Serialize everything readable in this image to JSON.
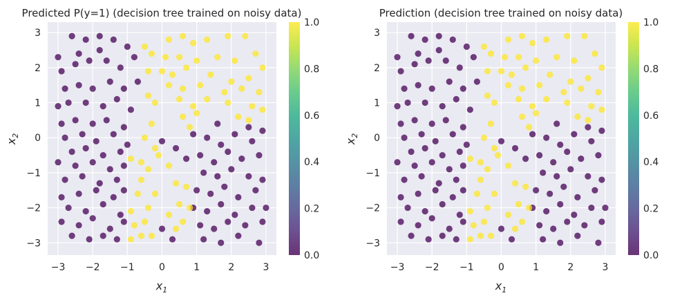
{
  "chart_data": [
    {
      "type": "scatter",
      "title": "Predicted P(y=1) (decision tree trained on noisy data)",
      "xlabel": "x",
      "xlabel_sub": "1",
      "ylabel": "x",
      "ylabel_sub": "2",
      "xlim": [
        -3.3,
        3.3
      ],
      "ylim": [
        -3.35,
        3.3
      ],
      "xticks": [
        -3,
        -2,
        -1,
        0,
        1,
        2,
        3
      ],
      "yticks": [
        -3,
        -2,
        -1,
        0,
        1,
        2,
        3
      ],
      "xtick_labels": [
        "−3",
        "−2",
        "−1",
        "0",
        "1",
        "2",
        "3"
      ],
      "ytick_labels": [
        "−3",
        "−2",
        "−1",
        "0",
        "1",
        "2",
        "3"
      ],
      "colorbar": {
        "min": 0.0,
        "max": 1.0,
        "ticks": [
          0.0,
          0.2,
          0.4,
          0.6,
          0.8,
          1.0
        ],
        "tick_labels": [
          "0.0",
          "0.2",
          "0.4",
          "0.6",
          "0.8",
          "1.0"
        ],
        "colormap": "viridis"
      },
      "class_1_points": [
        [
          -0.5,
          2.6
        ],
        [
          -0.3,
          2.4
        ],
        [
          0.2,
          2.8
        ],
        [
          0.6,
          2.9
        ],
        [
          0.9,
          2.7
        ],
        [
          1.3,
          2.8
        ],
        [
          1.9,
          2.9
        ],
        [
          2.4,
          2.9
        ],
        [
          0.1,
          2.3
        ],
        [
          0.5,
          2.3
        ],
        [
          1.0,
          2.2
        ],
        [
          1.6,
          2.3
        ],
        [
          2.1,
          2.2
        ],
        [
          2.7,
          2.4
        ],
        [
          -0.4,
          1.9
        ],
        [
          0.0,
          1.9
        ],
        [
          0.3,
          1.8
        ],
        [
          0.7,
          2.0
        ],
        [
          1.4,
          1.8
        ],
        [
          2.0,
          1.6
        ],
        [
          2.5,
          1.7
        ],
        [
          2.9,
          2.0
        ],
        [
          0.2,
          1.5
        ],
        [
          0.6,
          1.4
        ],
        [
          1.1,
          1.5
        ],
        [
          1.8,
          1.3
        ],
        [
          2.3,
          1.4
        ],
        [
          2.8,
          1.3
        ],
        [
          -0.4,
          1.2
        ],
        [
          -0.2,
          1.0
        ],
        [
          0.5,
          1.1
        ],
        [
          0.9,
          0.9
        ],
        [
          1.3,
          1.1
        ],
        [
          1.9,
          1.0
        ],
        [
          2.6,
          0.9
        ],
        [
          0.6,
          0.6
        ],
        [
          0.8,
          0.3
        ],
        [
          1.0,
          0.7
        ],
        [
          2.2,
          0.6
        ],
        [
          2.9,
          0.8
        ],
        [
          2.5,
          0.5
        ],
        [
          -0.3,
          0.4
        ],
        [
          -0.5,
          0.0
        ],
        [
          -0.2,
          -0.3
        ],
        [
          -0.6,
          -0.7
        ],
        [
          -0.9,
          -0.6
        ],
        [
          -0.4,
          -0.9
        ],
        [
          -0.1,
          -0.5
        ],
        [
          -0.6,
          -1.2
        ],
        [
          -0.2,
          -1.6
        ],
        [
          -0.7,
          -1.6
        ],
        [
          -0.4,
          -2.0
        ],
        [
          -0.9,
          -2.1
        ],
        [
          -0.5,
          -2.4
        ],
        [
          -0.8,
          -2.5
        ],
        [
          -0.3,
          -2.8
        ],
        [
          -0.6,
          -2.8
        ],
        [
          -0.9,
          -2.9
        ],
        [
          0.2,
          -0.8
        ],
        [
          0.4,
          -1.3
        ],
        [
          0.7,
          -1.4
        ],
        [
          0.5,
          -1.9
        ],
        [
          0.2,
          -2.2
        ],
        [
          0.4,
          -2.6
        ],
        [
          0.8,
          -2.0
        ],
        [
          0.6,
          -2.4
        ]
      ],
      "class_0_points": [
        [
          -3.0,
          2.3
        ],
        [
          -2.6,
          2.9
        ],
        [
          -2.2,
          2.8
        ],
        [
          -1.8,
          2.9
        ],
        [
          -1.4,
          2.8
        ],
        [
          -1.0,
          2.6
        ],
        [
          -2.9,
          1.9
        ],
        [
          -2.5,
          2.1
        ],
        [
          -2.1,
          2.2
        ],
        [
          -1.6,
          2.2
        ],
        [
          -1.2,
          2.0
        ],
        [
          -0.8,
          2.3
        ],
        [
          -2.8,
          1.4
        ],
        [
          -2.4,
          1.5
        ],
        [
          -2.0,
          1.4
        ],
        [
          -1.5,
          1.6
        ],
        [
          -1.1,
          1.4
        ],
        [
          -0.7,
          1.6
        ],
        [
          -3.0,
          0.9
        ],
        [
          -2.7,
          1.0
        ],
        [
          -2.2,
          1.0
        ],
        [
          -1.7,
          0.9
        ],
        [
          -1.3,
          1.1
        ],
        [
          -0.9,
          0.8
        ],
        [
          -2.9,
          0.4
        ],
        [
          -2.5,
          0.5
        ],
        [
          -2.0,
          0.4
        ],
        [
          -1.6,
          0.5
        ],
        [
          -1.1,
          0.3
        ],
        [
          -2.8,
          0.0
        ],
        [
          -2.3,
          0.1
        ],
        [
          -1.9,
          -0.1
        ],
        [
          -1.4,
          0.1
        ],
        [
          -1.0,
          -0.2
        ],
        [
          -2.6,
          -0.4
        ],
        [
          -2.2,
          -0.3
        ],
        [
          -1.7,
          -0.5
        ],
        [
          -1.2,
          -0.4
        ],
        [
          -3.0,
          -0.7
        ],
        [
          -2.5,
          -0.8
        ],
        [
          -2.0,
          -0.7
        ],
        [
          -1.5,
          -0.9
        ],
        [
          -1.1,
          -0.8
        ],
        [
          -2.8,
          -1.2
        ],
        [
          -2.3,
          -1.1
        ],
        [
          -1.8,
          -1.3
        ],
        [
          -1.3,
          -1.2
        ],
        [
          -2.9,
          -1.7
        ],
        [
          -2.4,
          -1.6
        ],
        [
          -1.9,
          -1.5
        ],
        [
          -1.4,
          -1.7
        ],
        [
          -1.1,
          -1.5
        ],
        [
          -2.7,
          -2.0
        ],
        [
          -2.2,
          -2.1
        ],
        [
          -1.7,
          -1.9
        ],
        [
          -1.2,
          -2.2
        ],
        [
          -2.9,
          -2.4
        ],
        [
          -2.4,
          -2.5
        ],
        [
          -2.0,
          -2.3
        ],
        [
          -1.5,
          -2.6
        ],
        [
          -1.1,
          -2.4
        ],
        [
          -2.6,
          -2.8
        ],
        [
          -2.1,
          -2.9
        ],
        [
          -1.7,
          -2.8
        ],
        [
          -1.3,
          -2.9
        ],
        [
          -1.8,
          2.5
        ],
        [
          -2.4,
          2.4
        ],
        [
          0.0,
          -0.1
        ],
        [
          0.4,
          -0.3
        ],
        [
          0.9,
          0.1
        ],
        [
          1.3,
          0.0
        ],
        [
          1.7,
          -0.2
        ],
        [
          2.1,
          0.1
        ],
        [
          2.6,
          -0.1
        ],
        [
          2.9,
          0.2
        ],
        [
          0.7,
          -0.6
        ],
        [
          1.1,
          -0.5
        ],
        [
          1.5,
          -0.7
        ],
        [
          1.9,
          -0.4
        ],
        [
          2.3,
          -0.6
        ],
        [
          2.8,
          -0.5
        ],
        [
          1.2,
          -1.0
        ],
        [
          1.6,
          -1.1
        ],
        [
          2.0,
          -0.9
        ],
        [
          2.5,
          -1.1
        ],
        [
          2.9,
          -1.2
        ],
        [
          1.0,
          -1.5
        ],
        [
          1.4,
          -1.6
        ],
        [
          1.8,
          -1.4
        ],
        [
          2.2,
          -1.7
        ],
        [
          2.7,
          -1.5
        ],
        [
          0.9,
          -2.0
        ],
        [
          1.3,
          -2.1
        ],
        [
          1.7,
          -1.9
        ],
        [
          2.1,
          -2.2
        ],
        [
          2.6,
          -2.0
        ],
        [
          3.0,
          -2.0
        ],
        [
          1.1,
          -2.5
        ],
        [
          1.5,
          -2.6
        ],
        [
          1.9,
          -2.4
        ],
        [
          2.4,
          -2.5
        ],
        [
          2.9,
          -2.4
        ],
        [
          1.2,
          -2.9
        ],
        [
          1.7,
          -3.0
        ],
        [
          2.2,
          -2.8
        ],
        [
          2.8,
          -3.0
        ],
        [
          0.3,
          -2.9
        ],
        [
          0.0,
          -2.6
        ],
        [
          2.5,
          0.3
        ],
        [
          1.6,
          0.4
        ]
      ]
    },
    {
      "type": "scatter",
      "title": "Prediction (decision tree trained on noisy data)",
      "xlabel": "x",
      "xlabel_sub": "1",
      "ylabel": "x",
      "ylabel_sub": "2",
      "xlim": [
        -3.3,
        3.3
      ],
      "ylim": [
        -3.35,
        3.3
      ],
      "xticks": [
        -3,
        -2,
        -1,
        0,
        1,
        2,
        3
      ],
      "yticks": [
        -3,
        -2,
        -1,
        0,
        1,
        2,
        3
      ],
      "xtick_labels": [
        "−3",
        "−2",
        "−1",
        "0",
        "1",
        "2",
        "3"
      ],
      "ytick_labels": [
        "−3",
        "−2",
        "−1",
        "0",
        "1",
        "2",
        "3"
      ],
      "colorbar": {
        "min": 0.0,
        "max": 1.0,
        "ticks": [
          0.0,
          0.2,
          0.4,
          0.6,
          0.8,
          1.0
        ],
        "tick_labels": [
          "0.0",
          "0.2",
          "0.4",
          "0.6",
          "0.8",
          "1.0"
        ],
        "colormap": "viridis"
      },
      "points_same_as_chart": 0
    }
  ],
  "colors": {
    "class_0": "#440154",
    "class_1": "#fde725",
    "axes_background": "#eaeaf2",
    "grid": "#ffffff"
  }
}
